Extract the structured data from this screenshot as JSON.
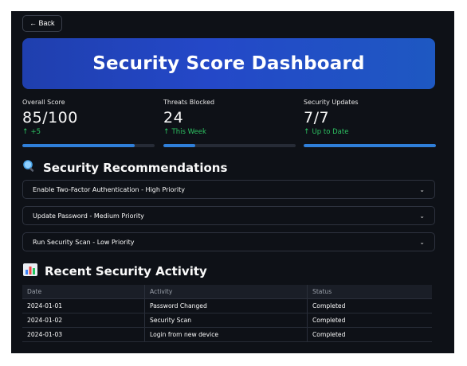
{
  "back_label": "← Back",
  "header": {
    "title": "Security Score Dashboard"
  },
  "metrics": [
    {
      "label": "Overall Score",
      "value": "85/100",
      "delta": "+5",
      "progress": 0.85
    },
    {
      "label": "Threats Blocked",
      "value": "24",
      "delta": "This Week",
      "progress": 0.24
    },
    {
      "label": "Security Updates",
      "value": "7/7",
      "delta": "Up to Date",
      "progress": 1.0
    }
  ],
  "colors": {
    "accent": "#2f7fd9",
    "delta_green": "#2dc262",
    "hero_blue": "#2448c8",
    "background": "#0e1117"
  },
  "recommendations": {
    "title": "Security Recommendations",
    "icon": "magnifier-icon",
    "items": [
      "Enable Two-Factor Authentication - High Priority",
      "Update Password - Medium Priority",
      "Run Security Scan - Low Priority"
    ]
  },
  "activity": {
    "title": "Recent Security Activity",
    "icon": "bar-chart-icon",
    "columns": [
      "Date",
      "Activity",
      "Status"
    ],
    "rows": [
      [
        "2024-01-01",
        "Password Changed",
        "Completed"
      ],
      [
        "2024-01-02",
        "Security Scan",
        "Completed"
      ],
      [
        "2024-01-03",
        "Login from new device",
        "Completed"
      ]
    ]
  }
}
